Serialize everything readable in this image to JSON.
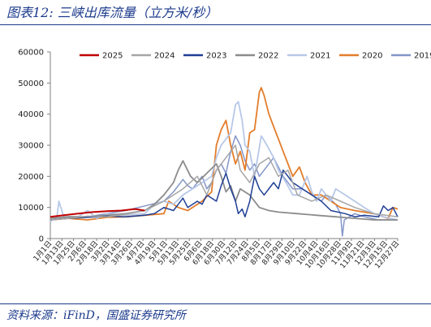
{
  "header": {
    "title": "图表12:  三峡出库流量（立方米/秒）"
  },
  "footer": {
    "source": "资料来源：iFinD，国盛证券研究所"
  },
  "chart_data": {
    "type": "line",
    "ylim": [
      0,
      60000
    ],
    "yticks": [
      "0",
      "10000",
      "20000",
      "30000",
      "40000",
      "50000",
      "60000"
    ],
    "x_tick_labels": [
      "1月1日",
      "1月13日",
      "1月25日",
      "2月6日",
      "2月18日",
      "3月2日",
      "3月14日",
      "3月26日",
      "4月7日",
      "4月19日",
      "5月1日",
      "5月13日",
      "5月25日",
      "6月6日",
      "6月18日",
      "6月30日",
      "7月12日",
      "7月24日",
      "8月5日",
      "8月17日",
      "8月29日",
      "9月10日",
      "9月22日",
      "10月4日",
      "10月16日",
      "10月28日",
      "11月9日",
      "11月21日",
      "12月3日",
      "12月15日",
      "12月27日"
    ],
    "legend_position": "top",
    "series": [
      {
        "name": "2025",
        "color": "#c00000",
        "width": 2.0,
        "points": [
          [
            1,
            7000
          ],
          [
            15,
            7500
          ],
          [
            30,
            8000
          ],
          [
            45,
            8500
          ],
          [
            60,
            8800
          ],
          [
            75,
            9000
          ],
          [
            90,
            9500
          ],
          [
            100,
            9000
          ]
        ]
      },
      {
        "name": "2024",
        "color": "#a6a6a6",
        "width": 1.5,
        "points": [
          [
            1,
            6000
          ],
          [
            20,
            6500
          ],
          [
            40,
            7200
          ],
          [
            60,
            7000
          ],
          [
            80,
            7800
          ],
          [
            100,
            9000
          ],
          [
            120,
            12000
          ],
          [
            140,
            16000
          ],
          [
            155,
            20000
          ],
          [
            165,
            14000
          ],
          [
            175,
            22000
          ],
          [
            185,
            26000
          ],
          [
            195,
            30000
          ],
          [
            200,
            22000
          ],
          [
            210,
            18000
          ],
          [
            220,
            24000
          ],
          [
            230,
            26000
          ],
          [
            240,
            20000
          ],
          [
            250,
            22000
          ],
          [
            260,
            14000
          ],
          [
            275,
            12000
          ],
          [
            290,
            14000
          ],
          [
            305,
            12000
          ],
          [
            320,
            10000
          ],
          [
            340,
            8000
          ],
          [
            365,
            7000
          ]
        ]
      },
      {
        "name": "2023",
        "color": "#1f3f95",
        "width": 1.5,
        "points": [
          [
            1,
            6000
          ],
          [
            20,
            6500
          ],
          [
            40,
            6800
          ],
          [
            60,
            7200
          ],
          [
            80,
            7000
          ],
          [
            100,
            7500
          ],
          [
            110,
            8000
          ],
          [
            120,
            10000
          ],
          [
            130,
            9000
          ],
          [
            140,
            13000
          ],
          [
            145,
            10000
          ],
          [
            155,
            12000
          ],
          [
            160,
            11000
          ],
          [
            165,
            14000
          ],
          [
            175,
            12000
          ],
          [
            180,
            17000
          ],
          [
            185,
            21000
          ],
          [
            190,
            16000
          ],
          [
            195,
            12000
          ],
          [
            198,
            8000
          ],
          [
            202,
            9500
          ],
          [
            205,
            7000
          ],
          [
            210,
            12000
          ],
          [
            215,
            20000
          ],
          [
            220,
            16000
          ],
          [
            225,
            14000
          ],
          [
            235,
            18000
          ],
          [
            240,
            16000
          ],
          [
            245,
            22000
          ],
          [
            255,
            18000
          ],
          [
            265,
            16000
          ],
          [
            275,
            14000
          ],
          [
            285,
            12000
          ],
          [
            295,
            9000
          ],
          [
            310,
            8000
          ],
          [
            320,
            7000
          ],
          [
            330,
            7500
          ],
          [
            345,
            7000
          ],
          [
            350,
            10500
          ],
          [
            355,
            9000
          ],
          [
            360,
            10000
          ],
          [
            365,
            7000
          ]
        ]
      },
      {
        "name": "2022",
        "color": "#8c8c8c",
        "width": 1.8,
        "points": [
          [
            1,
            6500
          ],
          [
            20,
            7000
          ],
          [
            40,
            7000
          ],
          [
            60,
            7500
          ],
          [
            80,
            8000
          ],
          [
            100,
            9000
          ],
          [
            110,
            11000
          ],
          [
            120,
            14000
          ],
          [
            130,
            18000
          ],
          [
            135,
            22000
          ],
          [
            140,
            25000
          ],
          [
            148,
            20000
          ],
          [
            155,
            18000
          ],
          [
            165,
            21000
          ],
          [
            175,
            24000
          ],
          [
            180,
            20000
          ],
          [
            185,
            15000
          ],
          [
            190,
            17000
          ],
          [
            195,
            12000
          ],
          [
            200,
            16000
          ],
          [
            210,
            14000
          ],
          [
            220,
            10000
          ],
          [
            230,
            9000
          ],
          [
            240,
            8500
          ],
          [
            260,
            8000
          ],
          [
            280,
            7500
          ],
          [
            300,
            7000
          ],
          [
            320,
            6500
          ],
          [
            340,
            6000
          ],
          [
            365,
            6000
          ]
        ]
      },
      {
        "name": "2021",
        "color": "#b7c8e8",
        "width": 1.8,
        "points": [
          [
            1,
            5500
          ],
          [
            8,
            7000
          ],
          [
            10,
            12000
          ],
          [
            15,
            7000
          ],
          [
            30,
            7000
          ],
          [
            40,
            9000
          ],
          [
            50,
            6500
          ],
          [
            60,
            8000
          ],
          [
            80,
            7500
          ],
          [
            100,
            8000
          ],
          [
            110,
            11000
          ],
          [
            120,
            12000
          ],
          [
            130,
            11000
          ],
          [
            140,
            14000
          ],
          [
            150,
            16000
          ],
          [
            160,
            18000
          ],
          [
            170,
            20000
          ],
          [
            175,
            26000
          ],
          [
            180,
            30000
          ],
          [
            185,
            32000
          ],
          [
            190,
            34000
          ],
          [
            195,
            43000
          ],
          [
            198,
            44000
          ],
          [
            202,
            38000
          ],
          [
            205,
            30000
          ],
          [
            210,
            28000
          ],
          [
            215,
            20000
          ],
          [
            222,
            33000
          ],
          [
            228,
            30000
          ],
          [
            235,
            26000
          ],
          [
            240,
            22000
          ],
          [
            248,
            18000
          ],
          [
            255,
            14000
          ],
          [
            262,
            14000
          ],
          [
            270,
            20000
          ],
          [
            275,
            15000
          ],
          [
            280,
            12000
          ],
          [
            285,
            16000
          ],
          [
            290,
            14000
          ],
          [
            295,
            12000
          ],
          [
            300,
            16000
          ],
          [
            310,
            14000
          ],
          [
            320,
            12000
          ],
          [
            330,
            10000
          ],
          [
            340,
            8000
          ],
          [
            350,
            7000
          ],
          [
            365,
            6000
          ]
        ]
      },
      {
        "name": "2020",
        "color": "#e37d2b",
        "width": 1.8,
        "points": [
          [
            1,
            6000
          ],
          [
            20,
            6500
          ],
          [
            40,
            6000
          ],
          [
            60,
            6800
          ],
          [
            80,
            7000
          ],
          [
            100,
            7500
          ],
          [
            120,
            8000
          ],
          [
            125,
            12000
          ],
          [
            135,
            10000
          ],
          [
            145,
            9000
          ],
          [
            160,
            12000
          ],
          [
            170,
            15000
          ],
          [
            175,
            30000
          ],
          [
            180,
            35000
          ],
          [
            185,
            38000
          ],
          [
            190,
            30000
          ],
          [
            195,
            24000
          ],
          [
            200,
            28000
          ],
          [
            205,
            22000
          ],
          [
            210,
            34000
          ],
          [
            215,
            35000
          ],
          [
            220,
            47000
          ],
          [
            222,
            48500
          ],
          [
            225,
            46000
          ],
          [
            230,
            40000
          ],
          [
            235,
            36000
          ],
          [
            240,
            32000
          ],
          [
            245,
            28000
          ],
          [
            250,
            24000
          ],
          [
            255,
            20000
          ],
          [
            262,
            23000
          ],
          [
            268,
            18000
          ],
          [
            275,
            14000
          ],
          [
            285,
            14000
          ],
          [
            295,
            12000
          ],
          [
            305,
            10000
          ],
          [
            320,
            9000
          ],
          [
            340,
            8000
          ],
          [
            355,
            6500
          ],
          [
            360,
            10000
          ],
          [
            365,
            9500
          ]
        ]
      },
      {
        "name": "2019",
        "color": "#8396c8",
        "width": 1.5,
        "points": [
          [
            1,
            6000
          ],
          [
            20,
            6500
          ],
          [
            40,
            7000
          ],
          [
            60,
            8000
          ],
          [
            80,
            9000
          ],
          [
            100,
            10500
          ],
          [
            120,
            12000
          ],
          [
            130,
            15000
          ],
          [
            140,
            19000
          ],
          [
            145,
            17000
          ],
          [
            150,
            16000
          ],
          [
            160,
            20000
          ],
          [
            165,
            16000
          ],
          [
            170,
            18000
          ],
          [
            175,
            22000
          ],
          [
            180,
            24000
          ],
          [
            185,
            21000
          ],
          [
            190,
            28000
          ],
          [
            195,
            33000
          ],
          [
            200,
            30000
          ],
          [
            205,
            25000
          ],
          [
            210,
            22000
          ],
          [
            215,
            24000
          ],
          [
            220,
            20000
          ],
          [
            225,
            22000
          ],
          [
            235,
            26000
          ],
          [
            245,
            20000
          ],
          [
            255,
            16000
          ],
          [
            265,
            16000
          ],
          [
            275,
            14000
          ],
          [
            285,
            12000
          ],
          [
            290,
            14000
          ],
          [
            300,
            11000
          ],
          [
            305,
            8000
          ],
          [
            307,
            800
          ],
          [
            309,
            6000
          ],
          [
            320,
            8000
          ],
          [
            330,
            7000
          ],
          [
            345,
            6000
          ],
          [
            365,
            6000
          ]
        ]
      }
    ]
  }
}
